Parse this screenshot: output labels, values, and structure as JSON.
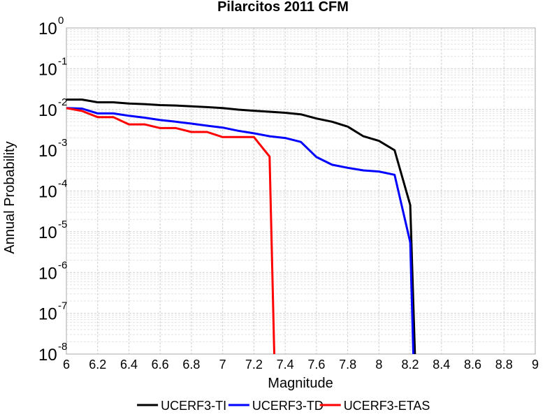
{
  "chart_data": {
    "type": "line",
    "title": "Pilarcitos 2011 CFM",
    "xlabel": "Magnitude",
    "ylabel": "Annual Probability",
    "xlim": [
      6,
      9
    ],
    "ylim": [
      1e-08,
      1
    ],
    "yscale": "log",
    "grid": true,
    "legend_position": "bottom",
    "x_ticks": [
      "6",
      "6.2",
      "6.4",
      "6.6",
      "6.8",
      "7",
      "7.2",
      "7.4",
      "7.6",
      "7.8",
      "8",
      "8.2",
      "8.4",
      "8.6",
      "8.8",
      "9"
    ],
    "y_ticks": [
      {
        "base": "10",
        "exp": "-8"
      },
      {
        "base": "10",
        "exp": "-7"
      },
      {
        "base": "10",
        "exp": "-6"
      },
      {
        "base": "10",
        "exp": "-5"
      },
      {
        "base": "10",
        "exp": "-4"
      },
      {
        "base": "10",
        "exp": "-3"
      },
      {
        "base": "10",
        "exp": "-2"
      },
      {
        "base": "10",
        "exp": "-1"
      },
      {
        "base": "10",
        "exp": "0"
      }
    ],
    "series": [
      {
        "name": "UCERF3-TI",
        "color": "#000000",
        "x": [
          6.0,
          6.1,
          6.2,
          6.3,
          6.4,
          6.5,
          6.6,
          6.7,
          6.8,
          6.9,
          7.0,
          7.1,
          7.2,
          7.3,
          7.4,
          7.5,
          7.6,
          7.7,
          7.8,
          7.9,
          8.0,
          8.1,
          8.2,
          8.23
        ],
        "y": [
          0.0175,
          0.0175,
          0.015,
          0.015,
          0.014,
          0.0135,
          0.0128,
          0.0125,
          0.0119,
          0.0114,
          0.0108,
          0.0099,
          0.0093,
          0.0088,
          0.0083,
          0.0076,
          0.006,
          0.005,
          0.0038,
          0.0022,
          0.0017,
          0.001,
          4.5e-05,
          1e-08
        ]
      },
      {
        "name": "UCERF3-TD",
        "color": "#0000ff",
        "x": [
          6.0,
          6.1,
          6.2,
          6.3,
          6.4,
          6.5,
          6.6,
          6.7,
          6.8,
          6.9,
          7.0,
          7.1,
          7.2,
          7.3,
          7.4,
          7.5,
          7.6,
          7.7,
          7.8,
          7.9,
          8.0,
          8.1,
          8.2,
          8.22
        ],
        "y": [
          0.0108,
          0.0105,
          0.008,
          0.008,
          0.007,
          0.0063,
          0.0055,
          0.005,
          0.0045,
          0.004,
          0.0036,
          0.003,
          0.0026,
          0.0022,
          0.002,
          0.0016,
          0.00068,
          0.00044,
          0.00037,
          0.00032,
          0.0003,
          0.00025,
          5.5e-06,
          1e-08
        ]
      },
      {
        "name": "UCERF3-ETAS",
        "color": "#ff0000",
        "x": [
          6.0,
          6.1,
          6.2,
          6.3,
          6.4,
          6.5,
          6.6,
          6.7,
          6.8,
          6.9,
          7.0,
          7.1,
          7.2,
          7.3,
          7.33
        ],
        "y": [
          0.0108,
          0.0092,
          0.0065,
          0.0065,
          0.0043,
          0.0043,
          0.0035,
          0.0035,
          0.0028,
          0.0028,
          0.0021,
          0.0021,
          0.0021,
          0.0007,
          1e-08
        ]
      }
    ]
  }
}
